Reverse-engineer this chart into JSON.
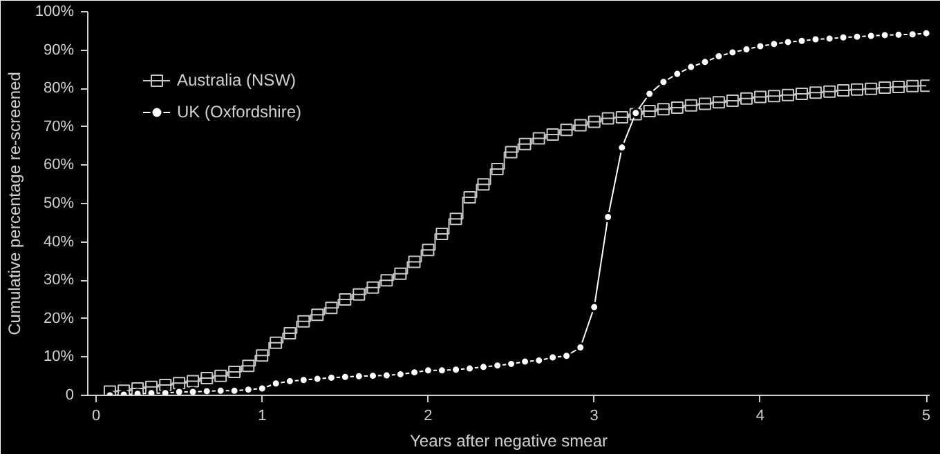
{
  "chart_data": {
    "type": "line",
    "xlabel": "Years after negative smear",
    "ylabel": "Cumulative percentage re-screened",
    "xlim": [
      -0.05,
      5.02
    ],
    "ylim": [
      0,
      100
    ],
    "xticks": [
      0,
      1,
      2,
      3,
      4,
      5
    ],
    "yticks": [
      {
        "value": 0,
        "label": "0"
      },
      {
        "value": 10,
        "label": "10%"
      },
      {
        "value": 20,
        "label": "20%"
      },
      {
        "value": 30,
        "label": "30%"
      },
      {
        "value": 40,
        "label": "40%"
      },
      {
        "value": 50,
        "label": "50%"
      },
      {
        "value": 60,
        "label": "60%"
      },
      {
        "value": 70,
        "label": "70%"
      },
      {
        "value": 80,
        "label": "80%"
      },
      {
        "value": 90,
        "label": "90%"
      },
      {
        "value": 100,
        "label": "100%"
      }
    ],
    "grid": false,
    "legend": "top left",
    "series": [
      {
        "name": "Australia (NSW)",
        "type": "step",
        "marker": "square",
        "color": "#c8c8c8",
        "values": [
          1.0,
          1.2,
          1.8,
          2.2,
          2.7,
          3.2,
          3.7,
          4.5,
          5.1,
          6.1,
          7.7,
          10.4,
          13.7,
          16.2,
          19.3,
          21.0,
          22.8,
          25.0,
          26.3,
          28.1,
          30.0,
          31.7,
          34.8,
          37.9,
          42.1,
          46.0,
          51.6,
          55.0,
          59.0,
          63.4,
          65.5,
          67.0,
          68.0,
          69.2,
          70.4,
          71.3,
          72.2,
          72.5,
          73.3,
          74.1,
          74.6,
          75.0,
          75.6,
          76.0,
          76.4,
          76.8,
          77.4,
          77.8,
          78.0,
          78.3,
          78.6,
          78.9,
          79.2,
          79.5,
          79.7,
          79.9,
          80.2,
          80.4,
          80.6,
          80.7
        ]
      },
      {
        "name": "UK (Oxfordshire)",
        "marker": "circle",
        "color": "#ffffff",
        "values": [
          0,
          0.2,
          0.4,
          0.6,
          0.6,
          0.9,
          0.9,
          1.1,
          1.2,
          1.2,
          1.5,
          1.8,
          3.1,
          3.7,
          4.0,
          4.3,
          4.6,
          4.8,
          5.0,
          5.1,
          5.2,
          5.5,
          6.0,
          6.5,
          6.5,
          6.7,
          7.0,
          7.4,
          7.8,
          8.2,
          8.8,
          9.1,
          9.9,
          10.3,
          12.5,
          23.0,
          46.5,
          64.6,
          73.6,
          78.6,
          81.7,
          83.8,
          85.6,
          86.9,
          88.4,
          89.4,
          90.2,
          91.0,
          91.6,
          92.1,
          92.4,
          92.8,
          93.0,
          93.3,
          93.5,
          93.7,
          93.9,
          94.0,
          94.1,
          94.4
        ]
      }
    ],
    "x": [
      0.083,
      0.167,
      0.25,
      0.333,
      0.417,
      0.5,
      0.583,
      0.667,
      0.75,
      0.833,
      0.917,
      1.0,
      1.083,
      1.167,
      1.25,
      1.333,
      1.417,
      1.5,
      1.583,
      1.667,
      1.75,
      1.833,
      1.917,
      2.0,
      2.083,
      2.167,
      2.25,
      2.333,
      2.417,
      2.5,
      2.583,
      2.667,
      2.75,
      2.833,
      2.917,
      3.0,
      3.083,
      3.167,
      3.25,
      3.333,
      3.417,
      3.5,
      3.583,
      3.667,
      3.75,
      3.833,
      3.917,
      4.0,
      4.083,
      4.167,
      4.25,
      4.333,
      4.417,
      4.5,
      4.583,
      4.667,
      4.75,
      4.833,
      4.917,
      5.0
    ]
  }
}
